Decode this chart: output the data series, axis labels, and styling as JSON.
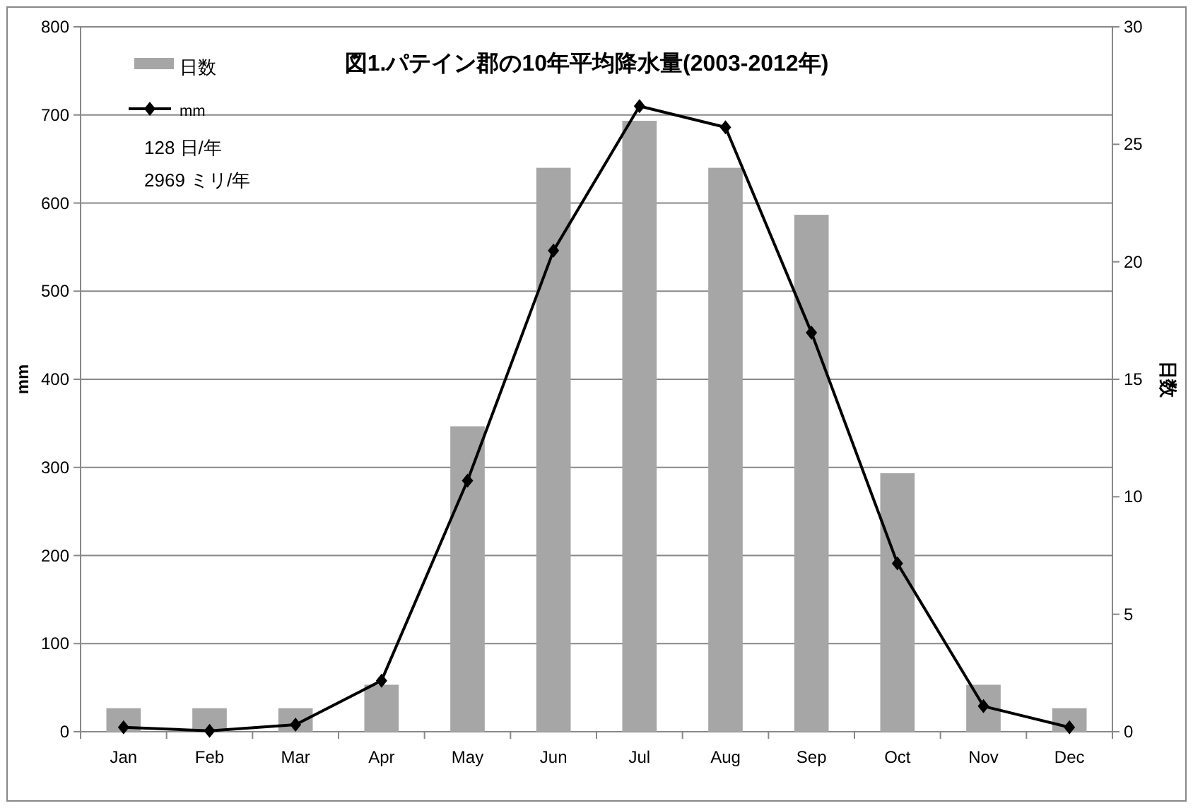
{
  "chart_data": {
    "type": "bar",
    "title": "図1.パテイン郡の10年平均降水量(2003-2012年)",
    "ylabel": "mm",
    "y2label": "日数",
    "categories": [
      "Jan",
      "Feb",
      "Mar",
      "Apr",
      "May",
      "Jun",
      "Jul",
      "Aug",
      "Sep",
      "Oct",
      "Nov",
      "Dec"
    ],
    "series": [
      {
        "name": "日数",
        "axis": "y2",
        "color": "#a6a6a6",
        "values": [
          1,
          1,
          1,
          2,
          13,
          24,
          26,
          24,
          22,
          11,
          2,
          1
        ]
      },
      {
        "name": "mm",
        "type": "line",
        "color": "#000000",
        "marker": "diamond",
        "values": [
          5,
          1,
          8,
          58,
          285,
          546,
          710,
          686,
          453,
          191,
          29,
          5
        ]
      }
    ],
    "ylim": [
      0,
      800
    ],
    "yticks": [
      0,
      100,
      200,
      300,
      400,
      500,
      600,
      700,
      800
    ],
    "y2lim": [
      0,
      30
    ],
    "y2ticks": [
      0,
      5,
      10,
      15,
      20,
      25,
      30
    ],
    "grid": "y",
    "legend": "top left",
    "annotations": [
      "128 日/年",
      "2969 ミリ/年"
    ]
  }
}
